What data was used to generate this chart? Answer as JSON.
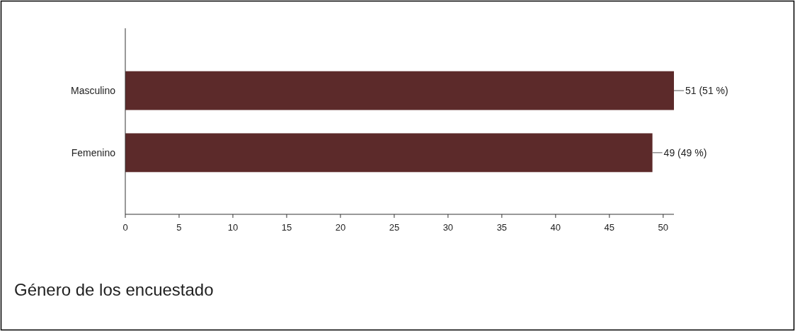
{
  "chart_data": {
    "type": "bar",
    "orientation": "horizontal",
    "title": "Género de los encuestado",
    "categories": [
      "Masculino",
      "Femenino"
    ],
    "values": [
      51,
      49
    ],
    "value_labels": [
      "51 (51 %)",
      "49 (49 %)"
    ],
    "color": "#5c2a2a",
    "xlim": [
      0,
      51
    ],
    "xticks": [
      0,
      5,
      10,
      15,
      20,
      25,
      30,
      35,
      40,
      45,
      50
    ]
  }
}
